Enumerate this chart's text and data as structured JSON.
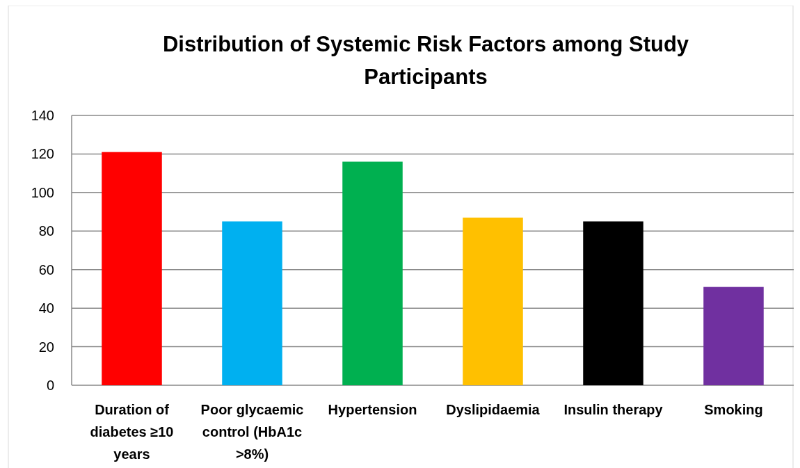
{
  "chart_data": {
    "type": "bar",
    "title": "Distribution of Systemic Risk Factors among Study Participants",
    "categories": [
      "Duration of diabetes ≥10 years",
      "Poor glycaemic control (HbA1c >8%)",
      "Hypertension",
      "Dyslipidaemia",
      "Insulin therapy",
      "Smoking"
    ],
    "values": [
      121,
      85,
      116,
      87,
      85,
      51
    ],
    "colors": [
      "#ff0000",
      "#00b0f0",
      "#00b050",
      "#ffc000",
      "#000000",
      "#7030a0"
    ],
    "ylim": [
      0,
      140
    ],
    "yticks": [
      0,
      20,
      40,
      60,
      80,
      100,
      120,
      140
    ],
    "grid": "y"
  }
}
